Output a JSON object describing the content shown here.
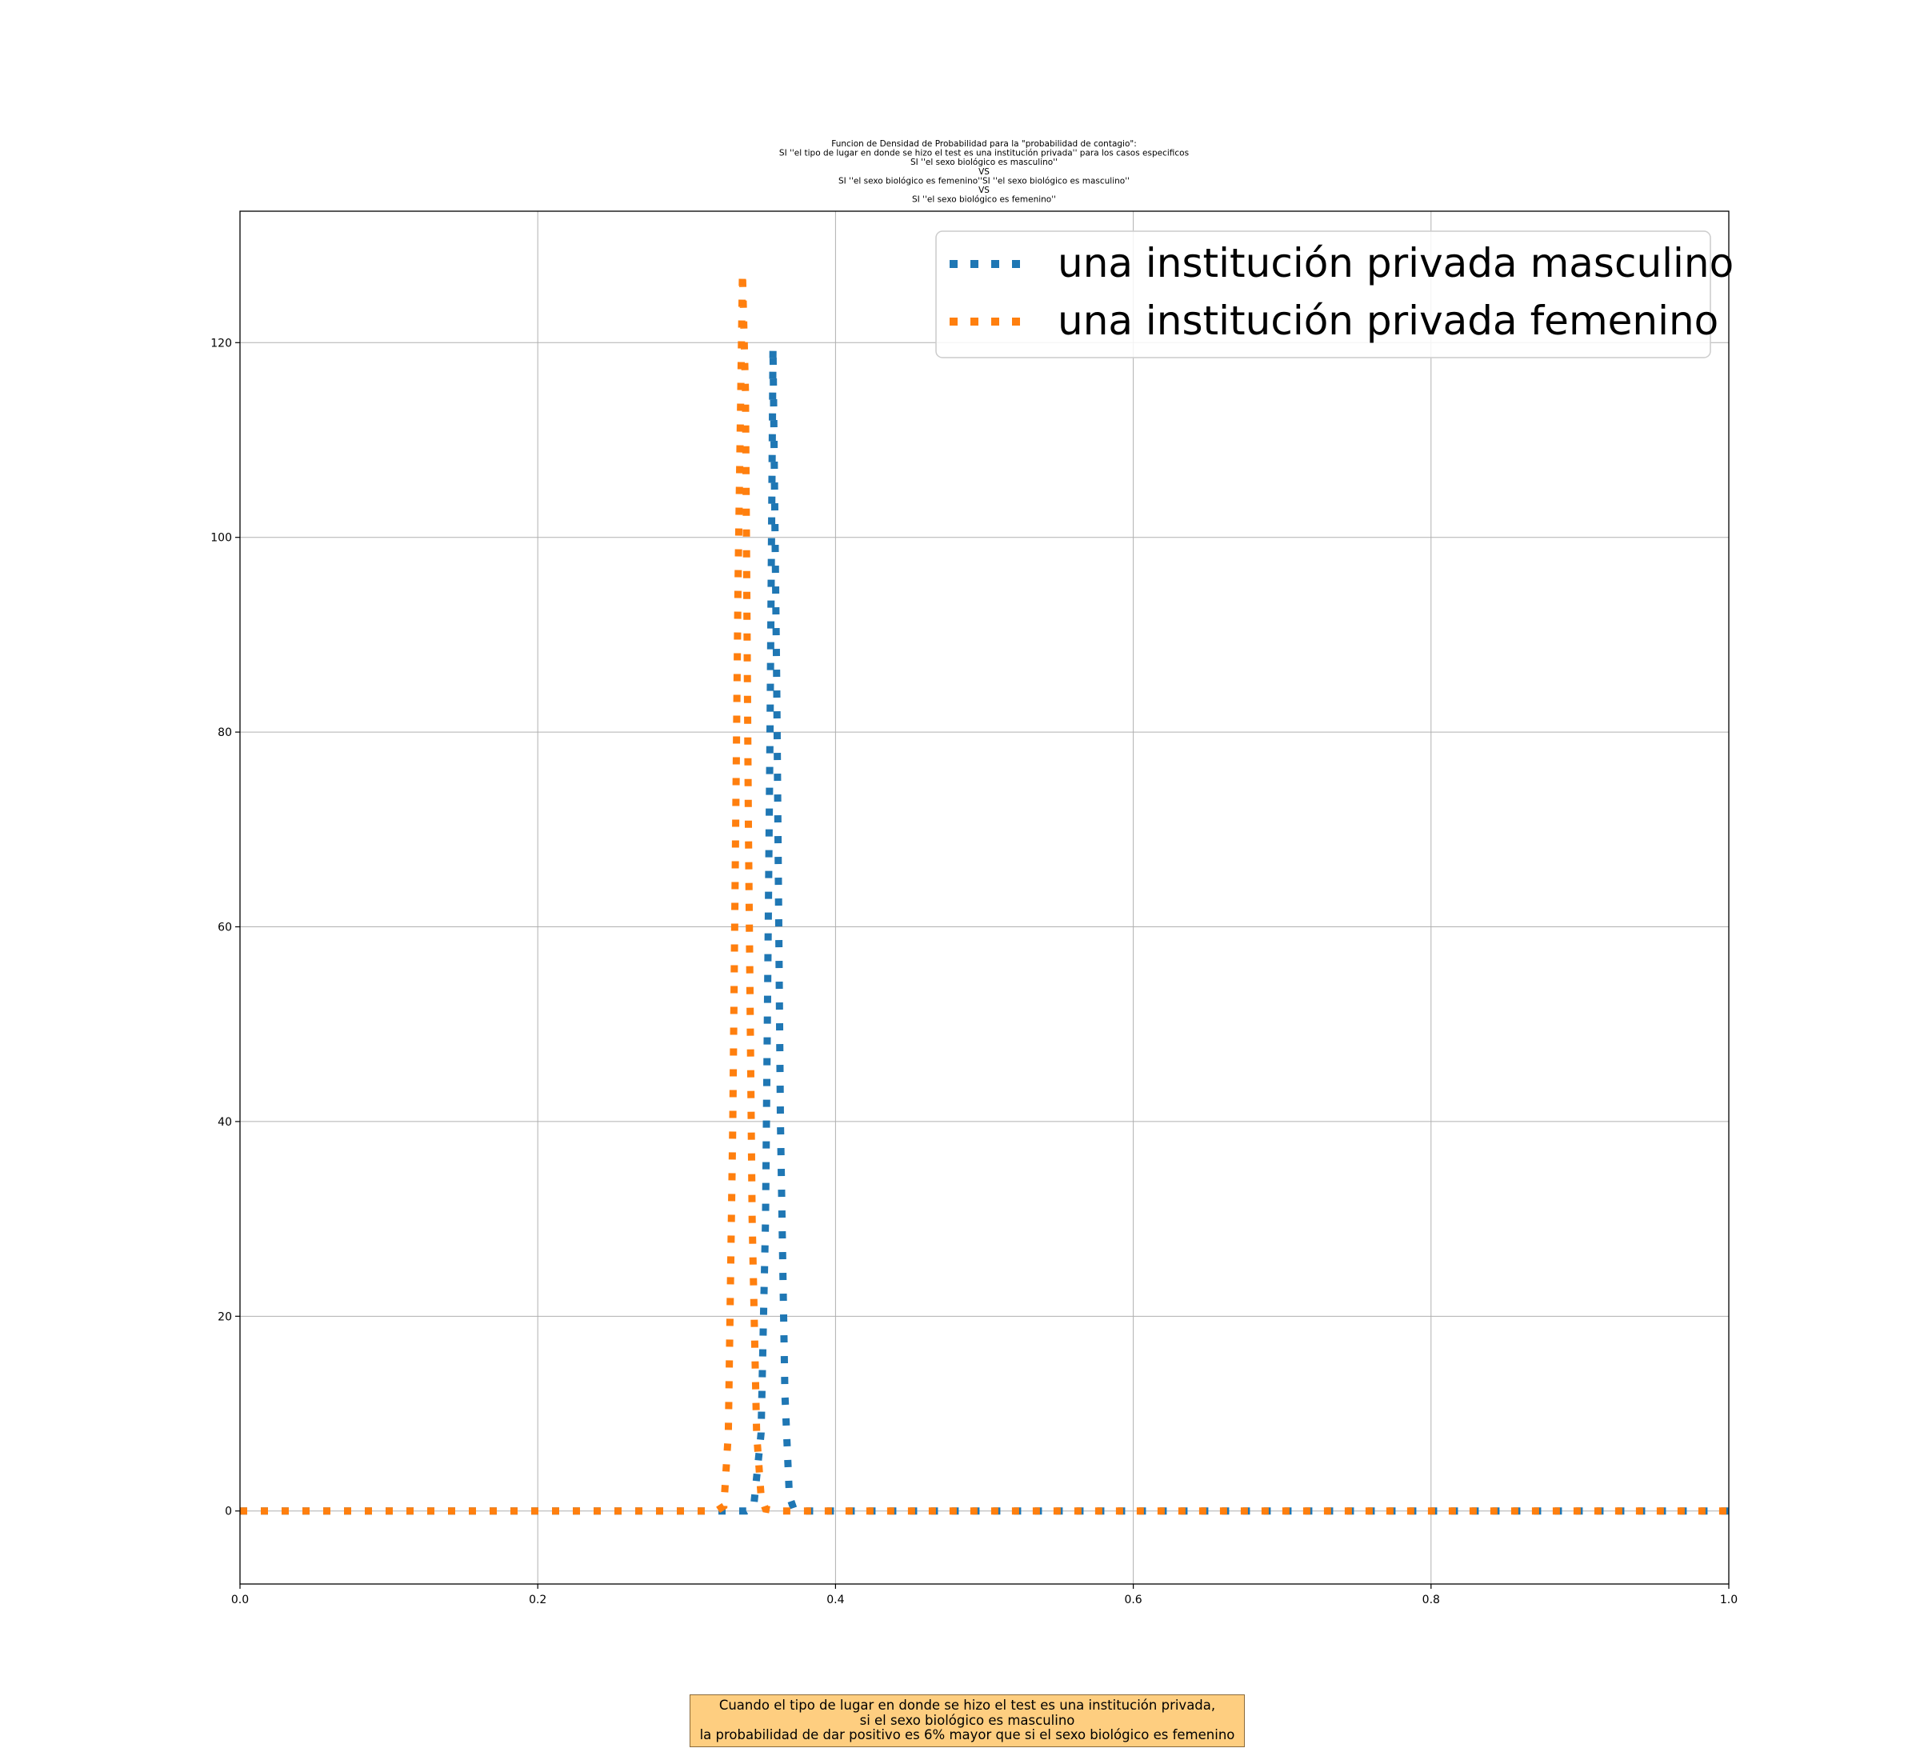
{
  "chart_data": {
    "type": "line",
    "title_lines": [
      "Funcion de Densidad de Probabilidad para la \"probabilidad de contagio\":",
      "SI ''el tipo de lugar en donde se hizo el test es una institución privada'' para los casos especificos",
      "SI ''el sexo biológico es masculino''",
      "VS",
      "SI ''el sexo biológico es femenino''SI ''el sexo biológico es masculino''",
      "VS",
      "SI ''el sexo biológico es femenino''"
    ],
    "xlabel": "",
    "ylabel": "",
    "xlim": [
      0.0,
      1.0
    ],
    "ylim": [
      -7.5,
      133.5
    ],
    "x_ticks": [
      0.0,
      0.2,
      0.4,
      0.6,
      0.8,
      1.0
    ],
    "x_tick_labels": [
      "0.0",
      "0.2",
      "0.4",
      "0.6",
      "0.8",
      "1.0"
    ],
    "y_ticks": [
      0,
      20,
      40,
      60,
      80,
      100,
      120
    ],
    "y_tick_labels": [
      "0",
      "20",
      "40",
      "60",
      "80",
      "100",
      "120"
    ],
    "grid": true,
    "legend_position": "top-right",
    "series": [
      {
        "name": "una institución privada masculino",
        "color": "#1f77b4",
        "line_style": "dotted",
        "x": [
          0.0,
          0.33,
          0.34,
          0.345,
          0.35,
          0.353,
          0.356,
          0.358,
          0.3605,
          0.363,
          0.366,
          0.369,
          0.372,
          0.375,
          0.38,
          0.4,
          1.0
        ],
        "y": [
          0,
          0,
          0,
          0.4,
          8,
          30,
          80,
          119.5,
          85,
          40,
          12,
          1.5,
          0.2,
          0,
          0,
          0,
          0
        ]
      },
      {
        "name": "una institución privada femenino",
        "color": "#ff7f0e",
        "line_style": "dotted",
        "x": [
          0.0,
          0.32,
          0.325,
          0.328,
          0.331,
          0.3345,
          0.3375,
          0.3395,
          0.3415,
          0.344,
          0.347,
          0.35,
          0.353,
          0.36,
          1.0
        ],
        "y": [
          0,
          0,
          0.5,
          8,
          40,
          95,
          127.2,
          115,
          70,
          30,
          8,
          1.5,
          0.2,
          0,
          0
        ]
      }
    ]
  },
  "annotation": {
    "lines": [
      "Cuando el tipo de lugar en donde se hizo el test es una institución privada,",
      "si el sexo biológico es masculino",
      "la probabilidad de dar positivo es 6% mayor que si el sexo biológico es femenino"
    ],
    "background_color": "#fece80"
  }
}
